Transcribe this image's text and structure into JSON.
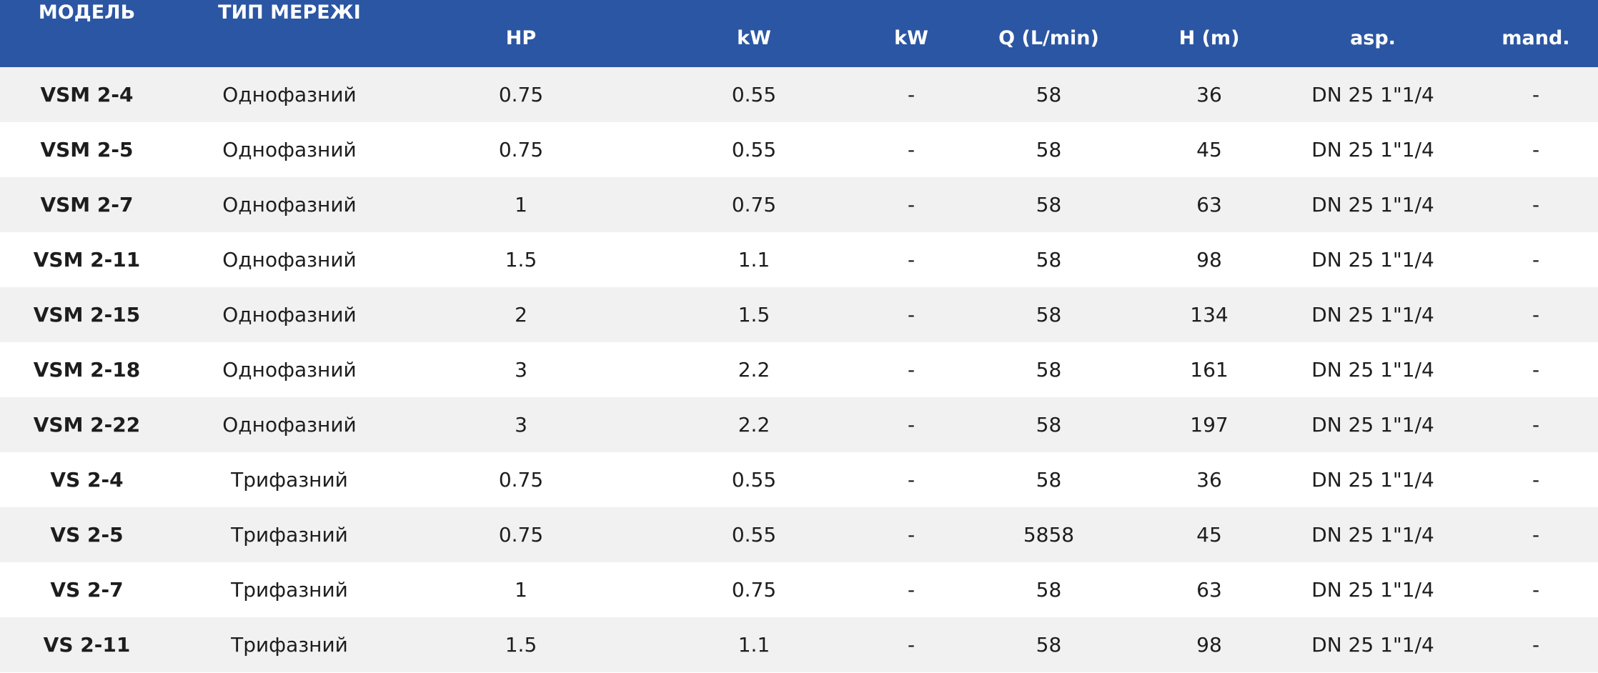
{
  "table": {
    "headers": [
      "МОДЕЛЬ",
      "ТИП МЕРЕЖІ",
      "HP",
      "kW",
      "kW",
      "Q (L/min)",
      "H (m)",
      "asp.",
      "mand."
    ],
    "rows": [
      [
        "VSM 2-4",
        "Однофазний",
        "0.75",
        "0.55",
        "-",
        "58",
        "36",
        "DN 25 1\"1/4",
        "-"
      ],
      [
        "VSM 2-5",
        "Однофазний",
        "0.75",
        "0.55",
        "-",
        "58",
        "45",
        "DN 25 1\"1/4",
        "-"
      ],
      [
        "VSM 2-7",
        "Однофазний",
        "1",
        "0.75",
        "-",
        "58",
        "63",
        "DN 25 1\"1/4",
        "-"
      ],
      [
        "VSM 2-11",
        "Однофазний",
        "1.5",
        "1.1",
        "-",
        "58",
        "98",
        "DN 25 1\"1/4",
        "-"
      ],
      [
        "VSM 2-15",
        "Однофазний",
        "2",
        "1.5",
        "-",
        "58",
        "134",
        "DN 25 1\"1/4",
        "-"
      ],
      [
        "VSM 2-18",
        "Однофазний",
        "3",
        "2.2",
        "-",
        "58",
        "161",
        "DN 25 1\"1/4",
        "-"
      ],
      [
        "VSM 2-22",
        "Однофазний",
        "3",
        "2.2",
        "-",
        "58",
        "197",
        "DN 25 1\"1/4",
        "-"
      ],
      [
        "VS 2-4",
        "Трифазний",
        "0.75",
        "0.55",
        "-",
        "58",
        "36",
        "DN 25 1\"1/4",
        "-"
      ],
      [
        "VS 2-5",
        "Трифазний",
        "0.75",
        "0.55",
        "-",
        "5858",
        "45",
        "DN 25 1\"1/4",
        "-"
      ],
      [
        "VS 2-7",
        "Трифазний",
        "1",
        "0.75",
        "-",
        "58",
        "63",
        "DN 25 1\"1/4",
        "-"
      ],
      [
        "VS 2-11",
        "Трифазний",
        "1.5",
        "1.1",
        "-",
        "58",
        "98",
        "DN 25 1\"1/4",
        "-"
      ]
    ]
  },
  "colors": {
    "header_bg": "#2b56a3",
    "header_text": "#ffffff",
    "row_odd": "#f1f1f1",
    "row_even": "#ffffff"
  }
}
